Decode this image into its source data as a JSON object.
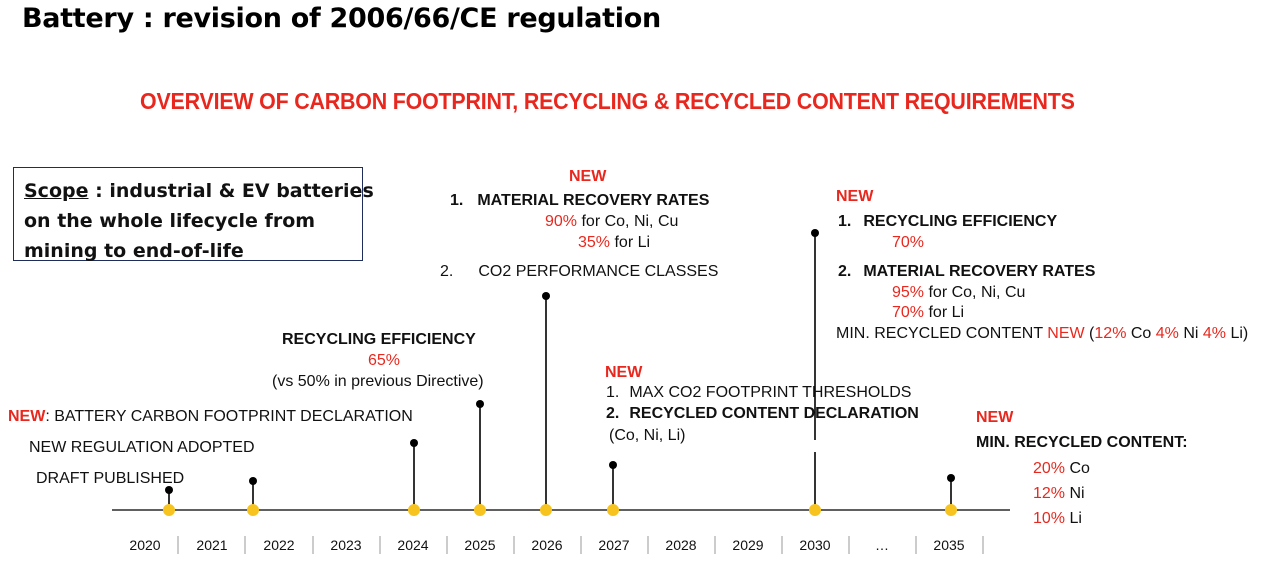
{
  "slide_title": "Battery : revision of 2006/66/CE regulation",
  "subtitle": "OVERVIEW OF CARBON FOOTPRINT, RECYCLING & RECYCLED CONTENT REQUIREMENTS",
  "scope": {
    "label": "Scope",
    "text_line1": " : industrial & EV batteries",
    "text_line2": "on the whole lifecycle from",
    "text_line3": "mining to end-of-life"
  },
  "timeline": {
    "years": [
      "2020",
      "2021",
      "2022",
      "2023",
      "2024",
      "2025",
      "2026",
      "2027",
      "2028",
      "2029",
      "2030",
      "…",
      "2035"
    ],
    "colors": {
      "accent": "#e8281e",
      "dot": "#f7c41f",
      "line": "#000000"
    }
  },
  "events": {
    "y2020": {
      "new_tag": "NEW",
      "text": ": BATTERY CARBON FOOTPRINT DECLARATION",
      "regulation": "NEW REGULATION ADOPTED",
      "draft": "DRAFT PUBLISHED"
    },
    "y2024": {
      "title": "RECYCLING EFFICIENCY",
      "value": "65%",
      "note": "(vs 50% in previous Directive)"
    },
    "y2026": {
      "new_tag": "NEW",
      "item1_num": "1.",
      "item1_title": "MATERIAL RECOVERY RATES",
      "item1_v1": "90%",
      "item1_v1_text": " for Co, Ni, Cu",
      "item1_v2": "35%",
      "item1_v2_text": " for Li",
      "item2_num": "2.",
      "item2_title": "CO2 PERFORMANCE CLASSES"
    },
    "y2027": {
      "new_tag": "NEW",
      "item1_num": "1.",
      "item1_title": "MAX CO2 FOOTPRINT THRESHOLDS",
      "item2_num": "2.",
      "item2_title": "RECYCLED CONTENT DECLARATION",
      "item2_note": "(Co, Ni, Li)"
    },
    "y2030": {
      "new_tag": "NEW",
      "item1_num": "1.",
      "item1_title": "RECYCLING EFFICIENCY",
      "item1_value": "70%",
      "item2_num": "2.",
      "item2_title": "MATERIAL RECOVERY RATES",
      "item2_v1": "95%",
      "item2_v1_text": " for Co, Ni, Cu",
      "item2_v2": "70%",
      "item2_v2_text": " for Li",
      "min_label": "MIN. RECYCLED CONTENT ",
      "min_new": "NEW",
      "min_open": " (",
      "co_val": "12%",
      "co_text": " Co ",
      "ni_val": "4%",
      "ni_text": " Ni ",
      "li_val": "4%",
      "li_text": " Li)"
    },
    "y2035": {
      "new_tag": "NEW",
      "title": "MIN. RECYCLED CONTENT:",
      "co_val": "20%",
      "co_text": " Co",
      "ni_val": "12%",
      "ni_text": " Ni",
      "li_val": "10%",
      "li_text": " Li"
    }
  }
}
